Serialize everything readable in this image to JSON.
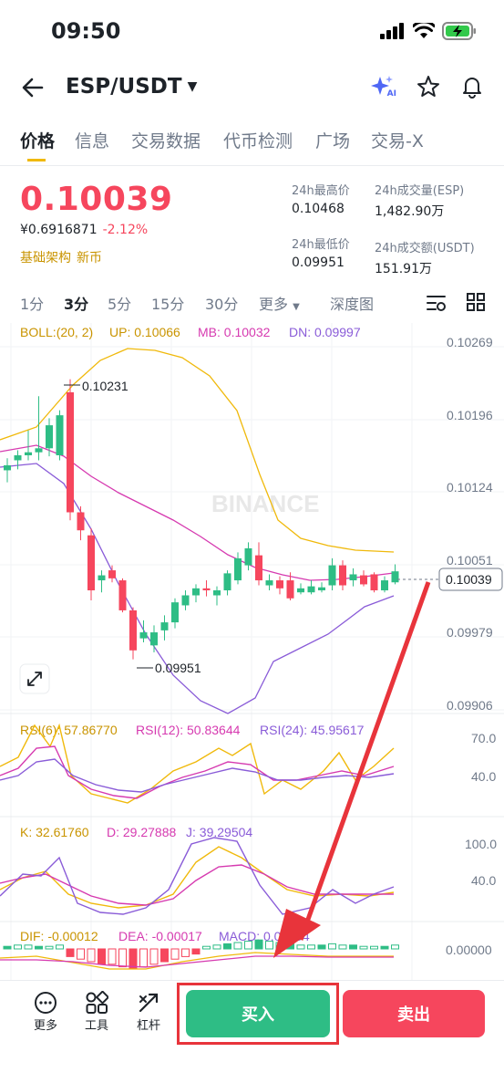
{
  "status": {
    "time": "09:50"
  },
  "nav": {
    "pair": "ESP/USDT",
    "ai_label": "AI"
  },
  "tabs": [
    "价格",
    "信息",
    "交易数据",
    "代币检测",
    "广场",
    "交易-X"
  ],
  "price": {
    "last": "0.10039",
    "fiat": "¥0.6916871",
    "change": "-2.12%",
    "tags": [
      "基础架构",
      "新币"
    ]
  },
  "stats": {
    "high_label": "24h最高价",
    "high": "0.10468",
    "low_label": "24h最低价",
    "low": "0.09951",
    "vol_esp_label": "24h成交量(ESP)",
    "vol_esp": "1,482.90万",
    "vol_usdt_label": "24h成交额(USDT)",
    "vol_usdt": "151.91万"
  },
  "intervals": [
    "1分",
    "3分",
    "5分",
    "15分",
    "30分",
    "更多",
    "深度图"
  ],
  "indicators": {
    "boll": {
      "label": "BOLL:(20, 2)",
      "up": "UP: 0.10066",
      "mb": "MB: 0.10032",
      "dn": "DN: 0.09997"
    },
    "rsi": {
      "r6": "RSI(6): 57.86770",
      "r12": "RSI(12): 50.83644",
      "r24": "RSI(24): 45.95617"
    },
    "kdj": {
      "k": "K: 32.61760",
      "d": "D: 29.27888",
      "j": "J: 39.29504"
    },
    "macd": {
      "dif": "DIF: -0.00012",
      "dea": "DEA: -0.00017",
      "macd": "MACD: 0.00004"
    }
  },
  "chart_data": {
    "type": "candlestick",
    "price_axis": [
      "0.10269",
      "0.10196",
      "0.10124",
      "0.10051",
      "0.09979",
      "0.09906"
    ],
    "price_axis_values": [
      0.10269,
      0.10196,
      0.10124,
      0.10051,
      0.09979,
      0.09906
    ],
    "current_price_tag": "0.10039",
    "high_marker": "0.10231",
    "low_marker": "0.09951",
    "watermark": "BINANCE",
    "rsi_axis": [
      "70.0",
      "40.0"
    ],
    "kdj_axis": [
      "100.0",
      "40.0"
    ],
    "macd_axis": [
      "0.00000"
    ],
    "candles": [
      {
        "o": 0.1014,
        "h": 0.10152,
        "l": 0.10128,
        "c": 0.10145
      },
      {
        "o": 0.1015,
        "h": 0.1016,
        "l": 0.10141,
        "c": 0.10155
      },
      {
        "o": 0.10155,
        "h": 0.1018,
        "l": 0.1015,
        "c": 0.10158
      },
      {
        "o": 0.10158,
        "h": 0.10214,
        "l": 0.1015,
        "c": 0.10162
      },
      {
        "o": 0.10162,
        "h": 0.10192,
        "l": 0.10154,
        "c": 0.10185
      },
      {
        "o": 0.10155,
        "h": 0.102,
        "l": 0.1015,
        "c": 0.10195
      },
      {
        "o": 0.10218,
        "h": 0.10231,
        "l": 0.1009,
        "c": 0.10098
      },
      {
        "o": 0.10098,
        "h": 0.10104,
        "l": 0.1007,
        "c": 0.1008
      },
      {
        "o": 0.10075,
        "h": 0.10082,
        "l": 0.1001,
        "c": 0.1002
      },
      {
        "o": 0.1003,
        "h": 0.1004,
        "l": 0.10018,
        "c": 0.10035
      },
      {
        "o": 0.1004,
        "h": 0.10045,
        "l": 0.10028,
        "c": 0.10032
      },
      {
        "o": 0.1003,
        "h": 0.10032,
        "l": 0.09998,
        "c": 0.1
      },
      {
        "o": 0.1,
        "h": 0.10003,
        "l": 0.09951,
        "c": 0.0996
      },
      {
        "o": 0.09972,
        "h": 0.0999,
        "l": 0.09968,
        "c": 0.09978
      },
      {
        "o": 0.09965,
        "h": 0.09985,
        "l": 0.09958,
        "c": 0.09978
      },
      {
        "o": 0.0998,
        "h": 0.09995,
        "l": 0.0997,
        "c": 0.09988
      },
      {
        "o": 0.09988,
        "h": 0.10012,
        "l": 0.09982,
        "c": 0.10008
      },
      {
        "o": 0.10005,
        "h": 0.1002,
        "l": 0.1,
        "c": 0.10015
      },
      {
        "o": 0.10015,
        "h": 0.10026,
        "l": 0.10008,
        "c": 0.10022
      },
      {
        "o": 0.10022,
        "h": 0.1003,
        "l": 0.10014,
        "c": 0.1002
      },
      {
        "o": 0.10015,
        "h": 0.10024,
        "l": 0.10005,
        "c": 0.1002
      },
      {
        "o": 0.1002,
        "h": 0.1004,
        "l": 0.10015,
        "c": 0.10037
      },
      {
        "o": 0.1003,
        "h": 0.10058,
        "l": 0.10026,
        "c": 0.10052
      },
      {
        "o": 0.10045,
        "h": 0.10068,
        "l": 0.1004,
        "c": 0.10062
      },
      {
        "o": 0.10055,
        "h": 0.10068,
        "l": 0.10025,
        "c": 0.1003
      },
      {
        "o": 0.10025,
        "h": 0.10036,
        "l": 0.1002,
        "c": 0.1003
      },
      {
        "o": 0.1003,
        "h": 0.10034,
        "l": 0.10016,
        "c": 0.10022
      },
      {
        "o": 0.1003,
        "h": 0.10038,
        "l": 0.1001,
        "c": 0.10012
      },
      {
        "o": 0.10018,
        "h": 0.10027,
        "l": 0.10016,
        "c": 0.10022
      },
      {
        "o": 0.10018,
        "h": 0.1003,
        "l": 0.10016,
        "c": 0.10024
      },
      {
        "o": 0.1002,
        "h": 0.10028,
        "l": 0.10018,
        "c": 0.10023
      },
      {
        "o": 0.10025,
        "h": 0.10052,
        "l": 0.1002,
        "c": 0.10045
      },
      {
        "o": 0.10045,
        "h": 0.1005,
        "l": 0.1002,
        "c": 0.10025
      },
      {
        "o": 0.1003,
        "h": 0.10042,
        "l": 0.10024,
        "c": 0.10036
      },
      {
        "o": 0.10035,
        "h": 0.1004,
        "l": 0.10024,
        "c": 0.10026
      },
      {
        "o": 0.10036,
        "h": 0.10038,
        "l": 0.10018,
        "c": 0.1002
      },
      {
        "o": 0.1002,
        "h": 0.10034,
        "l": 0.10018,
        "c": 0.1003
      },
      {
        "o": 0.10028,
        "h": 0.10046,
        "l": 0.10026,
        "c": 0.10039
      }
    ]
  },
  "bottom": {
    "more": "更多",
    "tools": "工具",
    "leverage": "杠杆",
    "buy": "买入",
    "sell": "卖出"
  }
}
